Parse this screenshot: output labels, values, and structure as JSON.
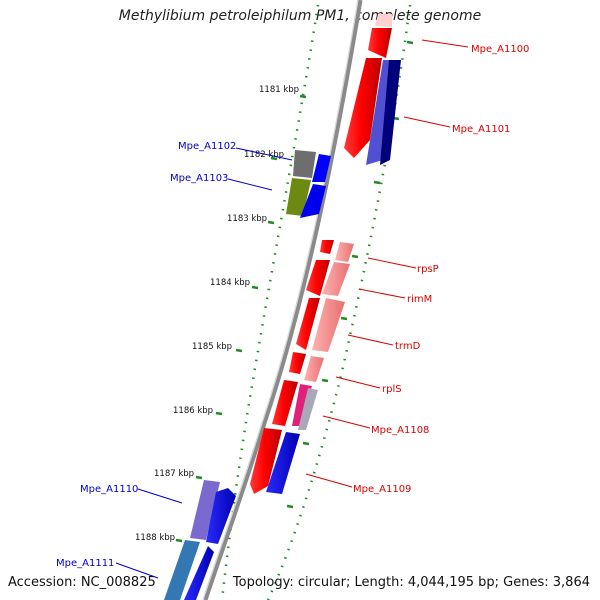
{
  "title": "Methylibium petroleiphilum PM1, complete genome",
  "accession": "Accession: NC_008825",
  "summary": "Topology: circular; Length: 4,044,195 bp; Genes: 3,864",
  "kbp_labels": [
    "1181 kbp",
    "1182 kbp",
    "1183 kbp",
    "1184 kbp",
    "1185 kbp",
    "1186 kbp",
    "1187 kbp",
    "1188 kbp"
  ],
  "genes": [
    {
      "id": "g1100",
      "label": "Mpe_A1100",
      "color": "#dd0000"
    },
    {
      "id": "g1101",
      "label": "Mpe_A1101",
      "color": "#dd0000"
    },
    {
      "id": "g1102",
      "label": "Mpe_A1102",
      "color": "#0000cc"
    },
    {
      "id": "g1103",
      "label": "Mpe_A1103",
      "color": "#0000cc"
    },
    {
      "id": "grpsP",
      "label": "rpsP",
      "color": "#dd0000"
    },
    {
      "id": "grimM",
      "label": "rimM",
      "color": "#dd0000"
    },
    {
      "id": "gtrmD",
      "label": "trmD",
      "color": "#dd0000"
    },
    {
      "id": "grplS",
      "label": "rplS",
      "color": "#dd0000"
    },
    {
      "id": "g1108",
      "label": "Mpe_A1108",
      "color": "#dd0000"
    },
    {
      "id": "g1109",
      "label": "Mpe_A1109",
      "color": "#dd0000"
    },
    {
      "id": "g1110",
      "label": "Mpe_A1110",
      "color": "#0000cc"
    },
    {
      "id": "g1111",
      "label": "Mpe_A1111",
      "color": "#0000cc"
    }
  ]
}
